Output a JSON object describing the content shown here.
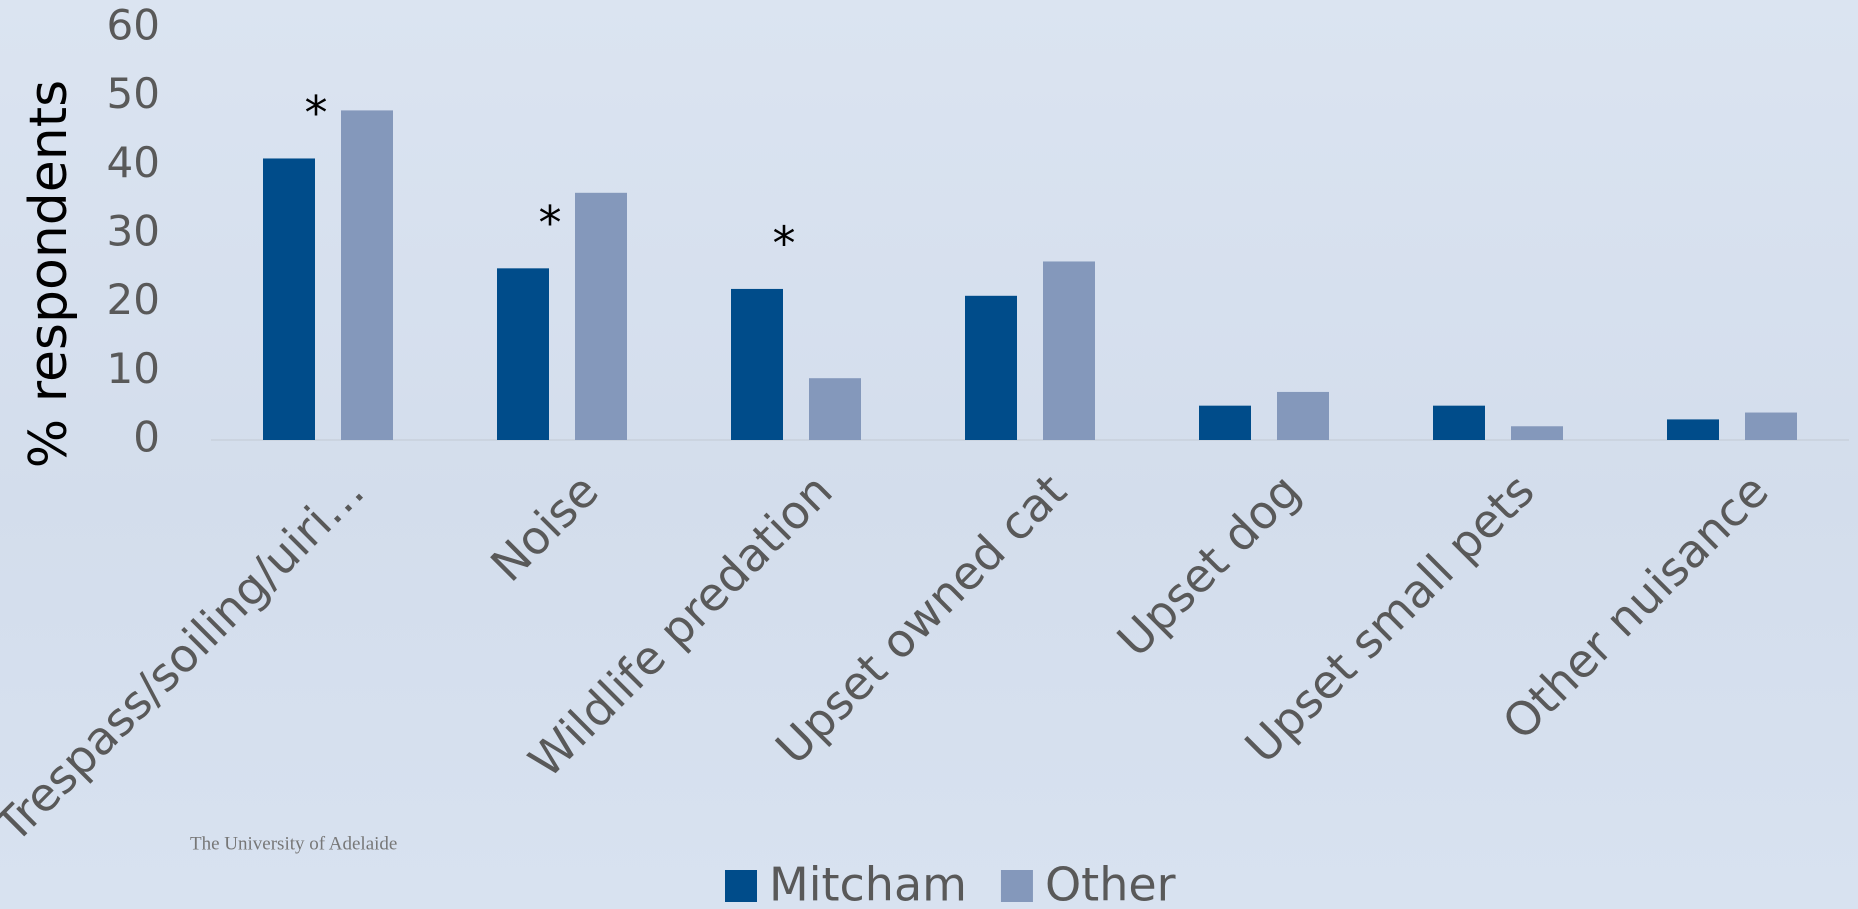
{
  "chart_data": {
    "type": "bar",
    "ylabel": "% respondents",
    "categories": [
      "Trespass/soiling/uiri…",
      "Noise",
      "Wildlife predation",
      "Upset owned cat",
      "Upset dog",
      "Upset small pets",
      "Other nuisance"
    ],
    "series": [
      {
        "name": "Mitcham",
        "color": "#004c8a",
        "values": [
          41,
          25,
          22,
          21,
          5,
          5,
          3
        ]
      },
      {
        "name": "Other",
        "color": "#8498bb",
        "values": [
          48,
          36,
          9,
          26,
          7,
          2,
          4
        ]
      }
    ],
    "annotations": [
      {
        "text": "*",
        "category": "Trespass/soiling/uiri…"
      },
      {
        "text": "*",
        "category": "Noise"
      },
      {
        "text": "*",
        "category": "Wildlife predation"
      }
    ],
    "ylim": [
      0,
      60
    ],
    "yticks": [
      0,
      10,
      20,
      30,
      40,
      50,
      60
    ],
    "grid": false,
    "legend": "bottom",
    "footer": "The University of Adelaide"
  }
}
